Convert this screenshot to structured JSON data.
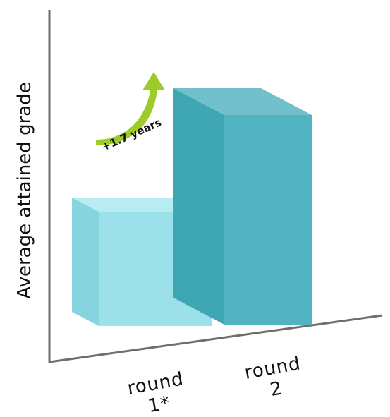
{
  "chart_data": {
    "type": "bar",
    "ylabel": "Average attained grade",
    "xlabel": "",
    "categories": [
      {
        "lines": [
          "round",
          "1*"
        ]
      },
      {
        "lines": [
          "round",
          "2"
        ]
      }
    ],
    "values": [
      1.0,
      2.7
    ],
    "annotation": {
      "text": "+1.7 years"
    },
    "colors": {
      "bar1_front": "#9ce1e9",
      "bar1_side": "#86d4dd",
      "bar1_top": "#b7ecf2",
      "bar2_front": "#52b3c1",
      "bar2_side": "#3fa6b4",
      "bar2_top": "#72c0cb",
      "arrow": "#9dcb2c",
      "axis": "#6e6e6e"
    }
  }
}
